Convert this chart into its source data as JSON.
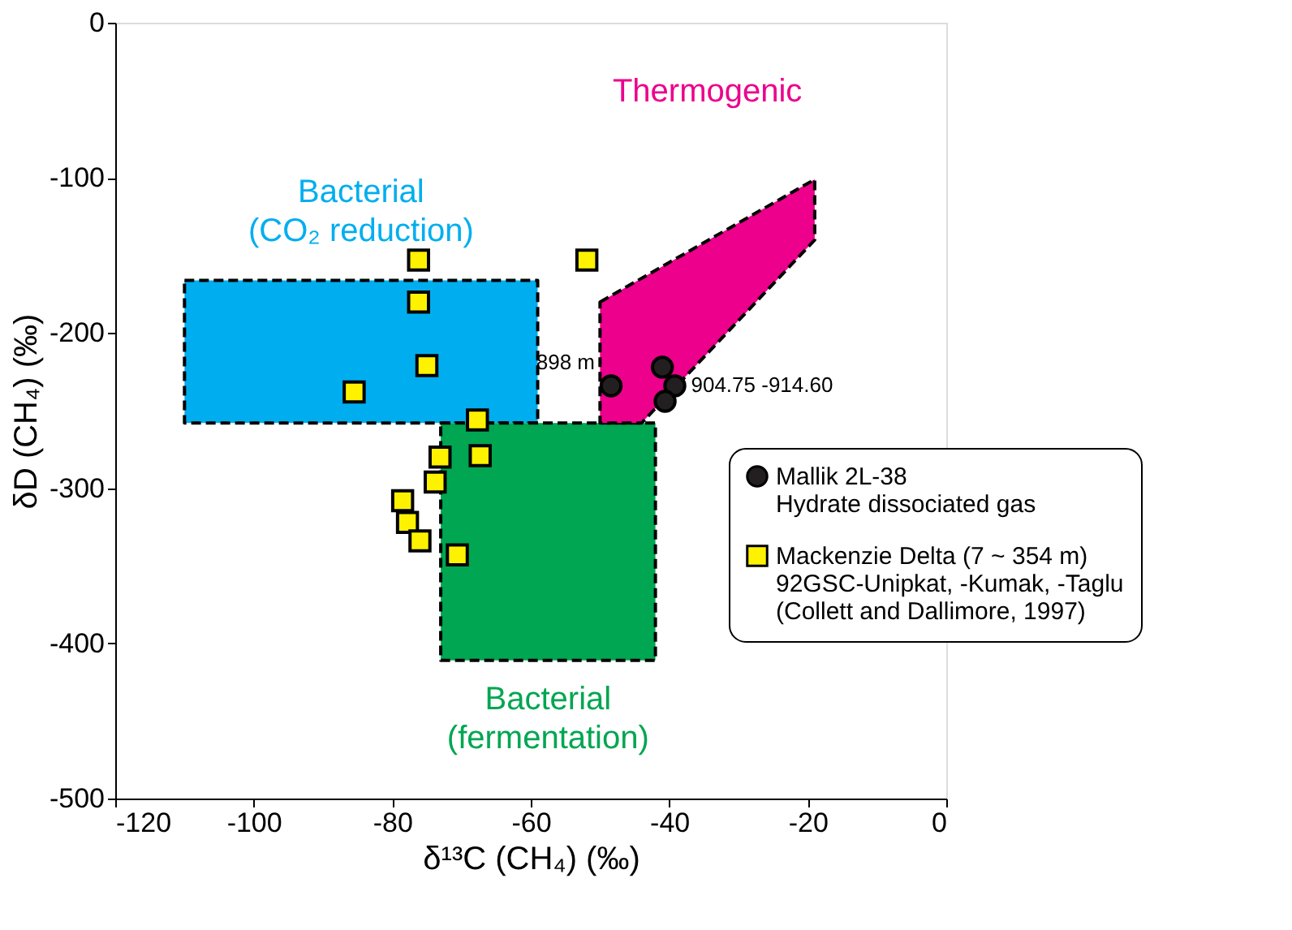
{
  "chart_data": {
    "type": "scatter",
    "xlabel": "δ¹³C (CH₄) (‰)",
    "ylabel": "δD (CH₄) (‰)",
    "xlim": [
      -120,
      0
    ],
    "ylim": [
      -500,
      0
    ],
    "xticks": [
      -120,
      -100,
      -80,
      -60,
      -40,
      -20,
      0
    ],
    "yticks": [
      -500,
      -400,
      -300,
      -200,
      -100,
      0
    ],
    "grid": false,
    "legend": "right",
    "series": [
      {
        "type": "area",
        "name": "Bacterial\n(CO₂ reduction)",
        "color": "#00aeef",
        "line_style": "dashed",
        "x": [
          -110,
          -59,
          -59,
          -110
        ],
        "values": [
          -166,
          -166,
          -258,
          -258
        ]
      },
      {
        "type": "area",
        "name": "Bacterial\n(fermentation)",
        "color": "#00a651",
        "line_style": "dashed",
        "x": [
          -73,
          -42,
          -42,
          -73
        ],
        "values": [
          -258,
          -258,
          -411,
          -411
        ]
      },
      {
        "type": "area",
        "name": "Thermogenic",
        "color": "#ec008c",
        "line_style": "dashed",
        "x": [
          -50,
          -19,
          -19,
          -44,
          -50
        ],
        "values": [
          -180,
          -101,
          -140,
          -258,
          -258
        ]
      },
      {
        "name": "Mallik 2L-38\nHydrate dissociated gas",
        "color": "#231f20",
        "marker": "circle",
        "x": [
          -48.4,
          -41,
          -39.2,
          -40.6
        ],
        "values": [
          -234,
          -222,
          -234,
          -244
        ]
      },
      {
        "name": "Mackenzie Delta (7 ~ 354 m)\n92GSC-Unipkat, -Kumak, -Taglu\n(Collett and Dallimore, 1997)",
        "color": "#fff200",
        "marker": "square",
        "x": [
          -76.2,
          -51.9,
          -76.2,
          -75,
          -85.5,
          -67.7,
          -67.3,
          -73.1,
          -73.8,
          -78.5,
          -77.8,
          -76,
          -70.6
        ],
        "values": [
          -153,
          -153,
          -180,
          -221,
          -238,
          -256,
          -279,
          -280,
          -296,
          -308,
          -322,
          -334,
          -343
        ]
      }
    ],
    "annotations": [
      "898 m",
      "904.75 -914.60"
    ]
  }
}
